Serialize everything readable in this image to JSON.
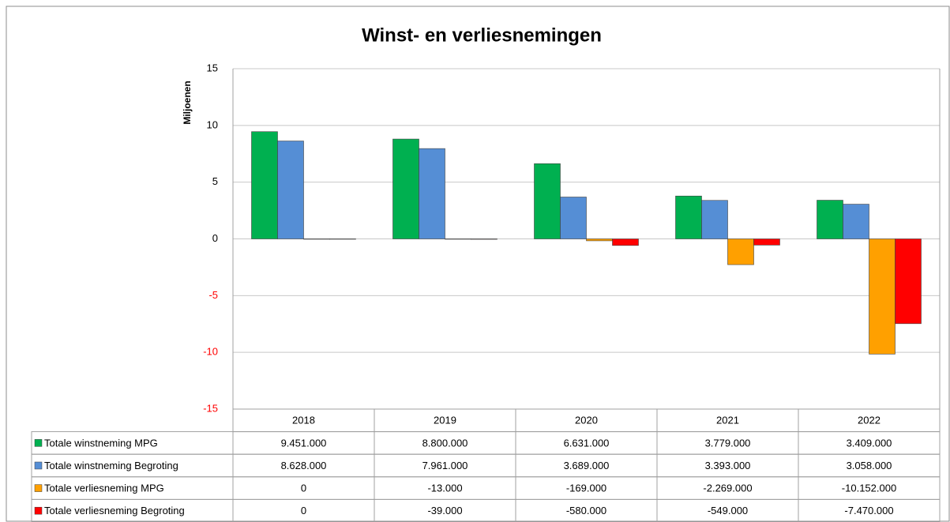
{
  "chart_data": {
    "type": "bar",
    "title": "Winst- en verliesnemingen",
    "y_label": "Miljoenen",
    "categories": [
      "2018",
      "2019",
      "2020",
      "2021",
      "2022"
    ],
    "series": [
      {
        "name": "Totale winstneming MPG",
        "color": "#00b050",
        "values": [
          9.451,
          8.8,
          6.631,
          3.779,
          3.409
        ],
        "value_labels": [
          "9.451.000",
          "8.800.000",
          "6.631.000",
          "3.779.000",
          "3.409.000"
        ]
      },
      {
        "name": "Totale winstneming Begroting",
        "color": "#558ed5",
        "values": [
          8.628,
          7.961,
          3.689,
          3.393,
          3.058
        ],
        "value_labels": [
          "8.628.000",
          "7.961.000",
          "3.689.000",
          "3.393.000",
          "3.058.000"
        ]
      },
      {
        "name": "Totale verliesneming MPG",
        "color": "#ffa000",
        "values": [
          0,
          -0.013,
          -0.169,
          -2.269,
          -10.152
        ],
        "value_labels": [
          "0",
          "-13.000",
          "-169.000",
          "-2.269.000",
          "-10.152.000"
        ]
      },
      {
        "name": "Totale verliesneming Begroting",
        "color": "#ff0000",
        "values": [
          0,
          -0.039,
          -0.58,
          -0.549,
          -7.47
        ],
        "value_labels": [
          "0",
          "-39.000",
          "-580.000",
          "-549.000",
          "-7.470.000"
        ]
      }
    ],
    "ylim": [
      -15,
      15
    ],
    "yticks": [
      -15,
      -10,
      -5,
      0,
      5,
      10,
      15
    ],
    "negative_tick_color": "#ff0000",
    "grid": true,
    "data_table": true
  }
}
